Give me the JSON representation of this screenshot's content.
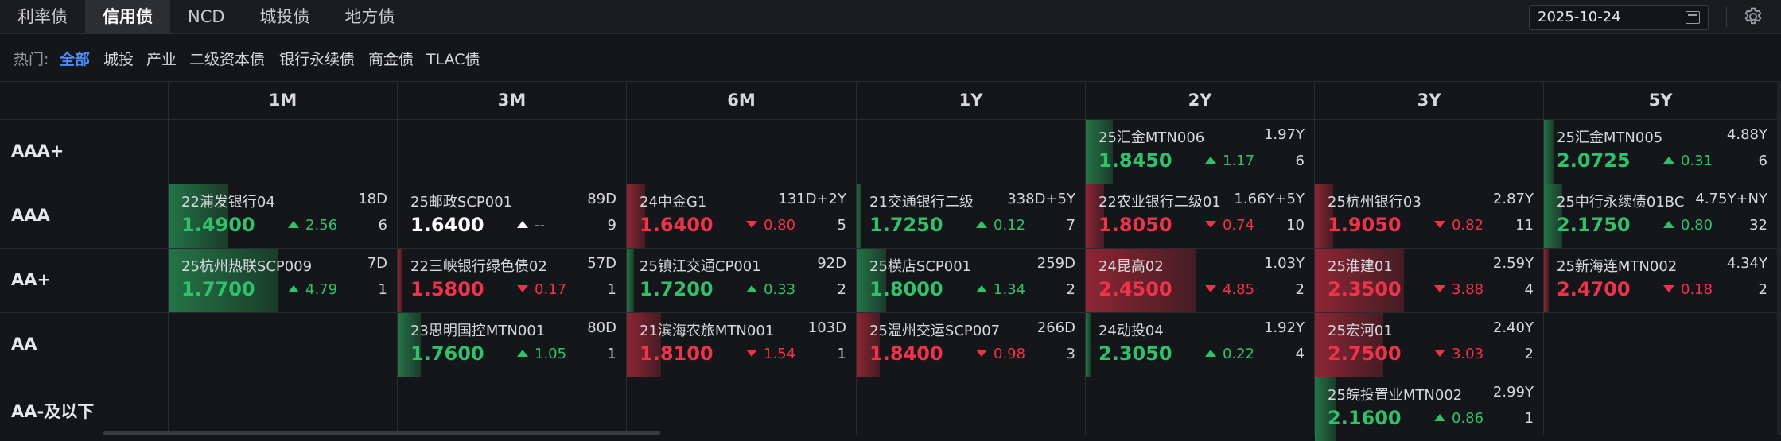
{
  "colors": {
    "up": "#2fc26b",
    "down": "#f0334a",
    "flat": "#ffffff",
    "accent": "#4c8dff"
  },
  "tabs": [
    "利率债",
    "信用债",
    "NCD",
    "城投债",
    "地方债"
  ],
  "active_tab": 1,
  "date": "2025-10-24",
  "hot": {
    "label": "热门:",
    "items": [
      "全部",
      "城投",
      "产业",
      "二级资本债",
      "银行永续债",
      "商金债",
      "TLAC债"
    ],
    "active": 0
  },
  "columns": [
    "1M",
    "3M",
    "6M",
    "1Y",
    "2Y",
    "3Y",
    "5Y"
  ],
  "rows": [
    "AAA+",
    "AAA",
    "AA+",
    "AA",
    "AA-及以下"
  ],
  "cells": [
    {
      "row": 0,
      "col": 4,
      "name": "25汇金MTN006",
      "term": "1.97Y",
      "yield": "1.8450",
      "dir": "up",
      "change": "1.17",
      "count": "6",
      "intensity": 0.12
    },
    {
      "row": 0,
      "col": 6,
      "name": "25汇金MTN005",
      "term": "4.88Y",
      "yield": "2.0725",
      "dir": "up",
      "change": "0.31",
      "count": "6",
      "intensity": 0.04
    },
    {
      "row": 1,
      "col": 0,
      "name": "22浦发银行04",
      "term": "18D",
      "yield": "1.4900",
      "dir": "up",
      "change": "2.56",
      "count": "6",
      "intensity": 0.26
    },
    {
      "row": 1,
      "col": 1,
      "name": "25邮政SCP001",
      "term": "89D",
      "yield": "1.6400",
      "dir": "flat",
      "change": "--",
      "count": "9",
      "intensity": 0
    },
    {
      "row": 1,
      "col": 2,
      "name": "24中金G1",
      "term": "131D+2Y",
      "yield": "1.6400",
      "dir": "down",
      "change": "0.80",
      "count": "5",
      "intensity": 0.08
    },
    {
      "row": 1,
      "col": 3,
      "name": "21交通银行二级",
      "term": "338D+5Y",
      "yield": "1.7250",
      "dir": "up",
      "change": "0.12",
      "count": "7",
      "intensity": 0.02
    },
    {
      "row": 1,
      "col": 4,
      "name": "22农业银行二级01",
      "term": "1.66Y+5Y",
      "yield": "1.8050",
      "dir": "down",
      "change": "0.74",
      "count": "10",
      "intensity": 0.08
    },
    {
      "row": 1,
      "col": 5,
      "name": "25杭州银行03",
      "term": "2.87Y",
      "yield": "1.9050",
      "dir": "down",
      "change": "0.82",
      "count": "11",
      "intensity": 0.08
    },
    {
      "row": 1,
      "col": 6,
      "name": "25中行永续债01BC",
      "term": "4.75Y+NY",
      "yield": "2.1750",
      "dir": "up",
      "change": "0.80",
      "count": "32",
      "intensity": 0.08
    },
    {
      "row": 2,
      "col": 0,
      "name": "25杭州热联SCP009",
      "term": "7D",
      "yield": "1.7700",
      "dir": "up",
      "change": "4.79",
      "count": "1",
      "intensity": 0.48
    },
    {
      "row": 2,
      "col": 1,
      "name": "22三峡银行绿色债02",
      "term": "57D",
      "yield": "1.5800",
      "dir": "down",
      "change": "0.17",
      "count": "1",
      "intensity": 0.02
    },
    {
      "row": 2,
      "col": 2,
      "name": "25镇江交通CP001",
      "term": "92D",
      "yield": "1.7200",
      "dir": "up",
      "change": "0.33",
      "count": "2",
      "intensity": 0.03
    },
    {
      "row": 2,
      "col": 3,
      "name": "25横店SCP001",
      "term": "259D",
      "yield": "1.8000",
      "dir": "up",
      "change": "1.34",
      "count": "2",
      "intensity": 0.13
    },
    {
      "row": 2,
      "col": 4,
      "name": "24昆高02",
      "term": "1.03Y",
      "yield": "2.4500",
      "dir": "down",
      "change": "4.85",
      "count": "2",
      "intensity": 0.48
    },
    {
      "row": 2,
      "col": 5,
      "name": "25淮建01",
      "term": "2.59Y",
      "yield": "2.3500",
      "dir": "down",
      "change": "3.88",
      "count": "4",
      "intensity": 0.39
    },
    {
      "row": 2,
      "col": 6,
      "name": "25新海连MTN002",
      "term": "4.34Y",
      "yield": "2.4700",
      "dir": "down",
      "change": "0.18",
      "count": "2",
      "intensity": 0.02
    },
    {
      "row": 3,
      "col": 1,
      "name": "23思明国控MTN001",
      "term": "80D",
      "yield": "1.7600",
      "dir": "up",
      "change": "1.05",
      "count": "1",
      "intensity": 0.1
    },
    {
      "row": 3,
      "col": 2,
      "name": "21滨海农旅MTN001",
      "term": "103D",
      "yield": "1.8100",
      "dir": "down",
      "change": "1.54",
      "count": "1",
      "intensity": 0.15
    },
    {
      "row": 3,
      "col": 3,
      "name": "25温州交运SCP007",
      "term": "266D",
      "yield": "1.8400",
      "dir": "down",
      "change": "0.98",
      "count": "3",
      "intensity": 0.1
    },
    {
      "row": 3,
      "col": 4,
      "name": "24动投04",
      "term": "1.92Y",
      "yield": "2.3050",
      "dir": "up",
      "change": "0.22",
      "count": "4",
      "intensity": 0.02
    },
    {
      "row": 3,
      "col": 5,
      "name": "25宏河01",
      "term": "2.40Y",
      "yield": "2.7500",
      "dir": "down",
      "change": "3.03",
      "count": "2",
      "intensity": 0.3
    },
    {
      "row": 4,
      "col": 5,
      "name": "25皖投置业MTN002",
      "term": "2.99Y",
      "yield": "2.1600",
      "dir": "up",
      "change": "0.86",
      "count": "1",
      "intensity": 0.09
    }
  ]
}
